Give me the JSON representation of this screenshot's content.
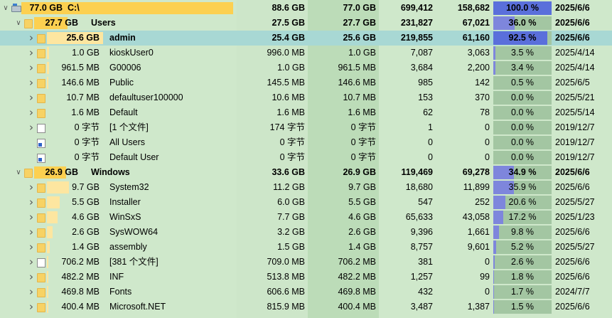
{
  "columns": {
    "bg_colors": [
      "#cfe8cb",
      "#bcdcb8",
      "#cfe8cb",
      "#cfe8cb",
      "#cfe8cb",
      "#cfe8cb"
    ]
  },
  "colors": {
    "selected_row": "#a8d8d4",
    "folder": "#f7d264",
    "percent_bar": "#7e86dc",
    "percent_bar_high": "#5a6fdb",
    "percent_box": "#a3c6a2",
    "size_bar_gold": "#fcd050",
    "size_bar_pale": "#fde6a0"
  },
  "rows": [
    {
      "level": 0,
      "expander": "down",
      "icon": "drive-icon",
      "bar": 1.0,
      "bar_color": "#fcd050",
      "size": "77.0 GB",
      "name": "C:\\",
      "allocated": "88.6 GB",
      "used": "77.0 GB",
      "files": "699,412",
      "folders": "158,682",
      "percent": "100.0 %",
      "pct": 1.0,
      "date": "2025/6/6",
      "bold": true,
      "selected": false
    },
    {
      "level": 1,
      "expander": "down",
      "icon": "folder-icon",
      "bar": 0.36,
      "bar_color": "#fcd050",
      "size": "27.7 GB",
      "name": "Users",
      "allocated": "27.5 GB",
      "used": "27.7 GB",
      "files": "231,827",
      "folders": "67,021",
      "percent": "36.0 %",
      "pct": 0.36,
      "date": "2025/6/6",
      "bold": true,
      "selected": false
    },
    {
      "level": 2,
      "expander": "right",
      "icon": "folder-icon",
      "bar": 0.925,
      "bar_color": "#fde6a0",
      "size": "25.6 GB",
      "name": "admin",
      "allocated": "25.4 GB",
      "used": "25.6 GB",
      "files": "219,855",
      "folders": "61,160",
      "percent": "92.5 %",
      "pct": 0.925,
      "date": "2025/6/6",
      "bold": true,
      "selected": true
    },
    {
      "level": 2,
      "expander": "right",
      "icon": "folder-icon",
      "bar": 0.035,
      "bar_color": "#fde6a0",
      "size": "1.0 GB",
      "name": "kioskUser0",
      "allocated": "996.0 MB",
      "used": "1.0 GB",
      "files": "7,087",
      "folders": "3,063",
      "percent": "3.5 %",
      "pct": 0.035,
      "date": "2025/4/14",
      "bold": false,
      "selected": false
    },
    {
      "level": 2,
      "expander": "right",
      "icon": "folder-icon",
      "bar": 0.034,
      "bar_color": "#fde6a0",
      "size": "961.5 MB",
      "name": "G00006",
      "allocated": "1.0 GB",
      "used": "961.5 MB",
      "files": "3,684",
      "folders": "2,200",
      "percent": "3.4 %",
      "pct": 0.034,
      "date": "2025/4/14",
      "bold": false,
      "selected": false
    },
    {
      "level": 2,
      "expander": "right",
      "icon": "folder-icon",
      "bar": 0.005,
      "bar_color": "#fde6a0",
      "size": "146.6 MB",
      "name": "Public",
      "allocated": "145.5 MB",
      "used": "146.6 MB",
      "files": "985",
      "folders": "142",
      "percent": "0.5 %",
      "pct": 0.005,
      "date": "2025/6/5",
      "bold": false,
      "selected": false
    },
    {
      "level": 2,
      "expander": "right",
      "icon": "folder-icon",
      "bar": 0.0,
      "bar_color": "#fde6a0",
      "size": "10.7 MB",
      "name": "defaultuser100000",
      "allocated": "10.6 MB",
      "used": "10.7 MB",
      "files": "153",
      "folders": "370",
      "percent": "0.0 %",
      "pct": 0.0,
      "date": "2025/5/21",
      "bold": false,
      "selected": false
    },
    {
      "level": 2,
      "expander": "right",
      "icon": "folder-icon",
      "bar": 0.0,
      "bar_color": "#fde6a0",
      "size": "1.6 MB",
      "name": "Default",
      "allocated": "1.6 MB",
      "used": "1.6 MB",
      "files": "62",
      "folders": "78",
      "percent": "0.0 %",
      "pct": 0.0,
      "date": "2025/5/14",
      "bold": false,
      "selected": false
    },
    {
      "level": 2,
      "expander": "right",
      "icon": "file-icon",
      "bar": 0.0,
      "bar_color": "#fde6a0",
      "size": "0 字节",
      "name": "[1 个文件]",
      "allocated": "174 字节",
      "used": "0 字节",
      "files": "1",
      "folders": "0",
      "percent": "0.0 %",
      "pct": 0.0,
      "date": "2019/12/7",
      "bold": false,
      "selected": false
    },
    {
      "level": 2,
      "expander": "none",
      "icon": "shortcut-icon",
      "bar": 0.0,
      "bar_color": "#fde6a0",
      "size": "0 字节",
      "name": "All Users",
      "allocated": "0 字节",
      "used": "0 字节",
      "files": "0",
      "folders": "0",
      "percent": "0.0 %",
      "pct": 0.0,
      "date": "2019/12/7",
      "bold": false,
      "selected": false
    },
    {
      "level": 2,
      "expander": "none",
      "icon": "shortcut-icon",
      "bar": 0.0,
      "bar_color": "#fde6a0",
      "size": "0 字节",
      "name": "Default User",
      "allocated": "0 字节",
      "used": "0 字节",
      "files": "0",
      "folders": "0",
      "percent": "0.0 %",
      "pct": 0.0,
      "date": "2019/12/7",
      "bold": false,
      "selected": false
    },
    {
      "level": 1,
      "expander": "down",
      "icon": "folder-icon",
      "bar": 0.349,
      "bar_color": "#fcd050",
      "size": "26.9 GB",
      "name": "Windows",
      "allocated": "33.6 GB",
      "used": "26.9 GB",
      "files": "119,469",
      "folders": "69,278",
      "percent": "34.9 %",
      "pct": 0.349,
      "date": "2025/6/6",
      "bold": true,
      "selected": false
    },
    {
      "level": 2,
      "expander": "right",
      "icon": "folder-icon",
      "bar": 0.359,
      "bar_color": "#fde6a0",
      "size": "9.7 GB",
      "name": "System32",
      "allocated": "11.2 GB",
      "used": "9.7 GB",
      "files": "18,680",
      "folders": "11,899",
      "percent": "35.9 %",
      "pct": 0.359,
      "date": "2025/6/6",
      "bold": false,
      "selected": false
    },
    {
      "level": 2,
      "expander": "right",
      "icon": "folder-icon",
      "bar": 0.206,
      "bar_color": "#fde6a0",
      "size": "5.5 GB",
      "name": "Installer",
      "allocated": "6.0 GB",
      "used": "5.5 GB",
      "files": "547",
      "folders": "252",
      "percent": "20.6 %",
      "pct": 0.206,
      "date": "2025/5/27",
      "bold": false,
      "selected": false
    },
    {
      "level": 2,
      "expander": "right",
      "icon": "folder-icon",
      "bar": 0.172,
      "bar_color": "#fde6a0",
      "size": "4.6 GB",
      "name": "WinSxS",
      "allocated": "7.7 GB",
      "used": "4.6 GB",
      "files": "65,633",
      "folders": "43,058",
      "percent": "17.2 %",
      "pct": 0.172,
      "date": "2025/1/23",
      "bold": false,
      "selected": false
    },
    {
      "level": 2,
      "expander": "right",
      "icon": "folder-icon",
      "bar": 0.098,
      "bar_color": "#fde6a0",
      "size": "2.6 GB",
      "name": "SysWOW64",
      "allocated": "3.2 GB",
      "used": "2.6 GB",
      "files": "9,396",
      "folders": "1,661",
      "percent": "9.8 %",
      "pct": 0.098,
      "date": "2025/6/6",
      "bold": false,
      "selected": false
    },
    {
      "level": 2,
      "expander": "right",
      "icon": "folder-icon",
      "bar": 0.052,
      "bar_color": "#fde6a0",
      "size": "1.4 GB",
      "name": "assembly",
      "allocated": "1.5 GB",
      "used": "1.4 GB",
      "files": "8,757",
      "folders": "9,601",
      "percent": "5.2 %",
      "pct": 0.052,
      "date": "2025/5/27",
      "bold": false,
      "selected": false
    },
    {
      "level": 2,
      "expander": "right",
      "icon": "file-icon",
      "bar": 0.026,
      "bar_color": "#fde6a0",
      "size": "706.2 MB",
      "name": "[381 个文件]",
      "allocated": "709.0 MB",
      "used": "706.2 MB",
      "files": "381",
      "folders": "0",
      "percent": "2.6 %",
      "pct": 0.026,
      "date": "2025/6/6",
      "bold": false,
      "selected": false
    },
    {
      "level": 2,
      "expander": "right",
      "icon": "folder-icon",
      "bar": 0.018,
      "bar_color": "#fde6a0",
      "size": "482.2 MB",
      "name": "INF",
      "allocated": "513.8 MB",
      "used": "482.2 MB",
      "files": "1,257",
      "folders": "99",
      "percent": "1.8 %",
      "pct": 0.018,
      "date": "2025/6/6",
      "bold": false,
      "selected": false
    },
    {
      "level": 2,
      "expander": "right",
      "icon": "folder-icon",
      "bar": 0.017,
      "bar_color": "#fde6a0",
      "size": "469.8 MB",
      "name": "Fonts",
      "allocated": "606.6 MB",
      "used": "469.8 MB",
      "files": "432",
      "folders": "0",
      "percent": "1.7 %",
      "pct": 0.017,
      "date": "2024/7/7",
      "bold": false,
      "selected": false
    },
    {
      "level": 2,
      "expander": "right",
      "icon": "folder-icon",
      "bar": 0.015,
      "bar_color": "#fde6a0",
      "size": "400.4 MB",
      "name": "Microsoft.NET",
      "allocated": "815.9 MB",
      "used": "400.4 MB",
      "files": "3,487",
      "folders": "1,387",
      "percent": "1.5 %",
      "pct": 0.015,
      "date": "2025/6/6",
      "bold": false,
      "selected": false
    }
  ]
}
